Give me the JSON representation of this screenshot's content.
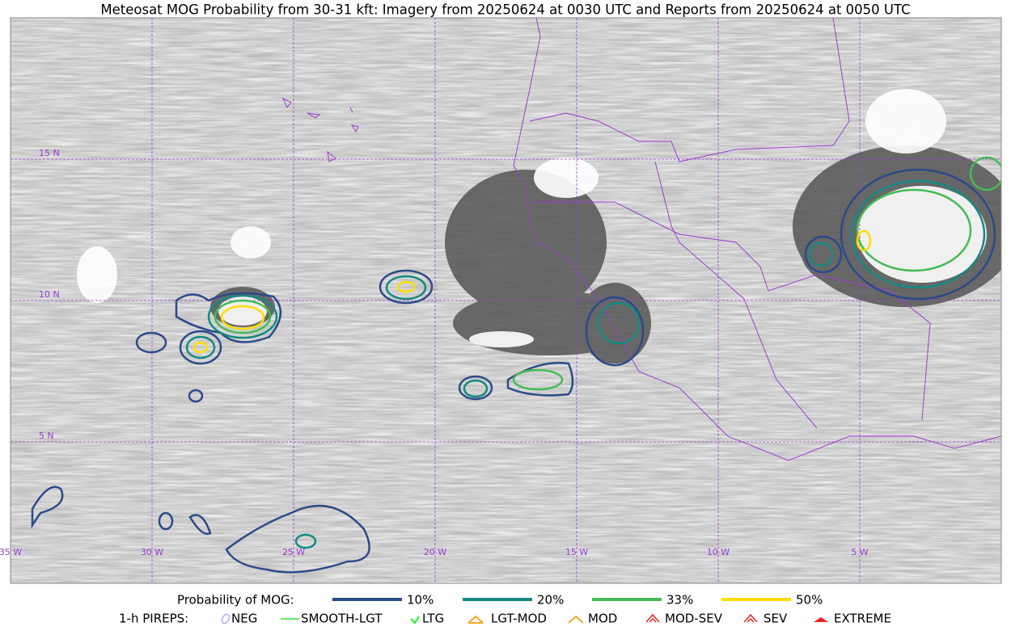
{
  "title": "Meteosat MOG Probability from 30-31 kft: Imagery from 20250624 at 0030 UTC and Reports from 20250624 at 0050 UTC",
  "grid_labels": {
    "lat": [
      "15 N",
      "10 N",
      "5 N"
    ],
    "lon": [
      "35 W",
      "30 W",
      "25 W",
      "20 W",
      "15 W",
      "10 W",
      "5 W"
    ]
  },
  "legend": {
    "title": "Probability of MOG:",
    "items": [
      "10%",
      "20%",
      "33%",
      "50%"
    ]
  },
  "pireps": {
    "title": "1-h PIREPS:",
    "items": [
      "NEG",
      "SMOOTH-LGT",
      "LTG",
      "LGT-MOD",
      "MOD",
      "MOD-SEV",
      "SEV",
      "EXTREME"
    ]
  }
}
